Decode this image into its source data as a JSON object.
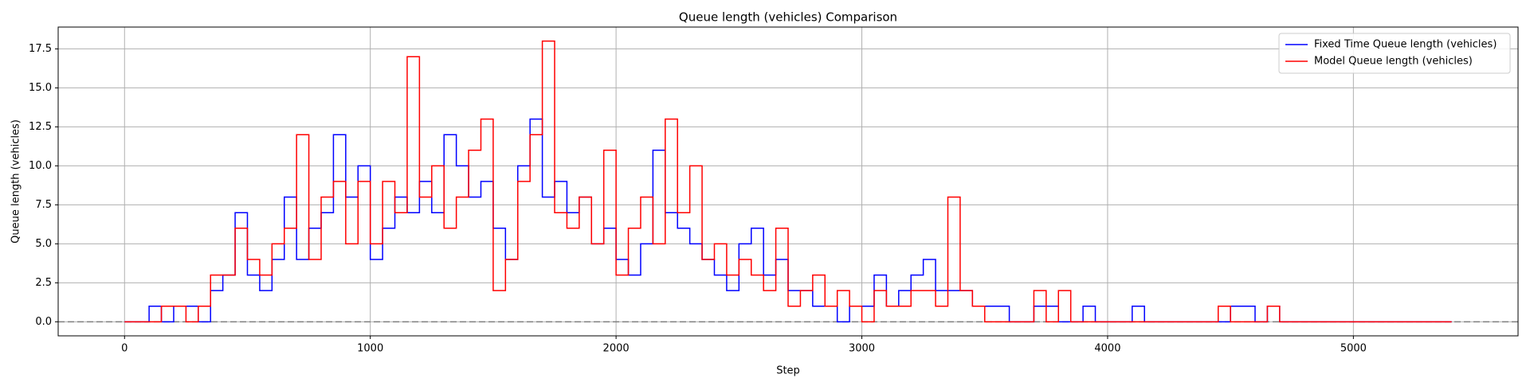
{
  "chart_data": {
    "type": "line",
    "title": "Queue length (vehicles) Comparison",
    "x_label": "Step",
    "y_label": "Queue length (vehicles)",
    "x": [
      0,
      50,
      100,
      150,
      200,
      250,
      300,
      350,
      400,
      450,
      500,
      550,
      600,
      650,
      700,
      750,
      800,
      850,
      900,
      950,
      1000,
      1050,
      1100,
      1150,
      1200,
      1250,
      1300,
      1350,
      1400,
      1450,
      1500,
      1550,
      1600,
      1650,
      1700,
      1750,
      1800,
      1850,
      1900,
      1950,
      2000,
      2050,
      2100,
      2150,
      2200,
      2250,
      2300,
      2350,
      2400,
      2450,
      2500,
      2550,
      2600,
      2650,
      2700,
      2750,
      2800,
      2850,
      2900,
      2950,
      3000,
      3050,
      3100,
      3150,
      3200,
      3250,
      3300,
      3350,
      3400,
      3450,
      3500,
      3550,
      3600,
      3650,
      3700,
      3750,
      3800,
      3850,
      3900,
      3950,
      4000,
      4050,
      4100,
      4150,
      4200,
      4250,
      4300,
      4350,
      4400,
      4450,
      4500,
      4550,
      4600,
      4650,
      4700,
      4750,
      4800,
      4850,
      4900,
      4950,
      5000,
      5050,
      5100,
      5150,
      5200,
      5250,
      5300,
      5350,
      5400
    ],
    "series": [
      {
        "name": "Fixed Time Queue length (vehicles)",
        "color": "#0000ff",
        "values": [
          0,
          0,
          1,
          0,
          1,
          1,
          0,
          2,
          3,
          7,
          3,
          2,
          4,
          8,
          4,
          6,
          7,
          12,
          8,
          10,
          4,
          6,
          8,
          7,
          9,
          7,
          12,
          10,
          8,
          9,
          6,
          4,
          10,
          13,
          8,
          9,
          7,
          8,
          5,
          6,
          4,
          3,
          5,
          11,
          7,
          6,
          5,
          4,
          3,
          2,
          5,
          6,
          3,
          4,
          2,
          2,
          1,
          1,
          0,
          1,
          1,
          3,
          1,
          2,
          3,
          4,
          2,
          2,
          2,
          1,
          1,
          1,
          0,
          0,
          1,
          1,
          0,
          0,
          1,
          0,
          0,
          0,
          1,
          0,
          0,
          0,
          0,
          0,
          0,
          0,
          1,
          1,
          0,
          1,
          0,
          0,
          0,
          0,
          0,
          0,
          0,
          0,
          0,
          0,
          0,
          0,
          0,
          0,
          0
        ]
      },
      {
        "name": "Model Queue length (vehicles)",
        "color": "#ff0000",
        "values": [
          0,
          0,
          0,
          1,
          1,
          0,
          1,
          3,
          3,
          6,
          4,
          3,
          5,
          6,
          12,
          4,
          8,
          9,
          5,
          9,
          5,
          9,
          7,
          17,
          8,
          10,
          6,
          8,
          11,
          13,
          2,
          4,
          9,
          12,
          18,
          7,
          6,
          8,
          5,
          11,
          3,
          6,
          8,
          5,
          13,
          7,
          10,
          4,
          5,
          3,
          4,
          3,
          2,
          6,
          1,
          2,
          3,
          1,
          2,
          1,
          0,
          2,
          1,
          1,
          2,
          2,
          1,
          8,
          2,
          1,
          0,
          0,
          0,
          0,
          2,
          0,
          2,
          0,
          0,
          0,
          0,
          0,
          0,
          0,
          0,
          0,
          0,
          0,
          0,
          1,
          0,
          0,
          0,
          1,
          0,
          0,
          0,
          0,
          0,
          0,
          0,
          0,
          0,
          0,
          0,
          0,
          0,
          0,
          0
        ]
      }
    ],
    "xlim": [
      -270,
      5670
    ],
    "ylim": [
      -0.9,
      18.9
    ],
    "xticks": [
      0,
      1000,
      2000,
      3000,
      4000,
      5000
    ],
    "yticks": [
      {
        "value": 0,
        "label": "0.0"
      },
      {
        "value": 2.5,
        "label": "2.5"
      },
      {
        "value": 5,
        "label": "5.0"
      },
      {
        "value": 7.5,
        "label": "7.5"
      },
      {
        "value": 10,
        "label": "10.0"
      },
      {
        "value": 12.5,
        "label": "12.5"
      },
      {
        "value": 15,
        "label": "15.0"
      },
      {
        "value": 17.5,
        "label": "17.5"
      }
    ],
    "reference_line": 0,
    "grid": true,
    "legend": "upper-right"
  }
}
